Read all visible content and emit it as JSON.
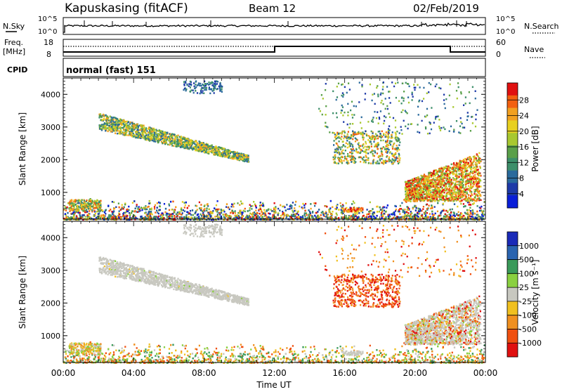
{
  "header": {
    "station": "Kapuskasing (fitACF)",
    "beam": "Beam 12",
    "date": "02/Feb/2019"
  },
  "strips": {
    "nsky_label": "N.Sky",
    "nsky_ticks": [
      "10^5",
      "10^0"
    ],
    "nsearch_label": "N.Search",
    "nsearch_ticks": [
      "10^5",
      "10^0"
    ],
    "freq_label_line1": "Freq.",
    "freq_label_line2": "[MHz]",
    "freq_ticks": [
      "18",
      "8"
    ],
    "nave_label": "Nave",
    "nave_ticks": [
      "60",
      "0"
    ],
    "cpid_label": "CPID",
    "cpid_text": "normal (fast) 151"
  },
  "chart_data": [
    {
      "type": "heatmap",
      "panel": "power",
      "ylabel": "Slant Range [km]",
      "xlabel": "Time UT",
      "x_ticks": [
        "00:00",
        "04:00",
        "08:00",
        "12:00",
        "16:00",
        "20:00",
        "00:00"
      ],
      "x_range_hours": [
        0,
        24
      ],
      "y_ticks": [
        1000,
        2000,
        3000,
        4000
      ],
      "y_range_km": [
        180,
        4500
      ],
      "colorbar_label": "Power [dB]",
      "colorbar_ticks": [
        4,
        8,
        12,
        16,
        20,
        24,
        28
      ],
      "colorscale": [
        "#0a1ed8",
        "#1e3aa8",
        "#2a6a9c",
        "#3d8f6a",
        "#5aa04a",
        "#a8c830",
        "#e8d020",
        "#f2a020",
        "#f26010",
        "#e01010"
      ],
      "regions": [
        {
          "name": "arc-echo",
          "t_start": 2.0,
          "t_end": 10.5,
          "r_start": 3200,
          "r_end": 2000,
          "level": "medium"
        },
        {
          "name": "high-echo",
          "t_start": 6.8,
          "t_end": 9.0,
          "r": 4200,
          "level": "low"
        },
        {
          "name": "near-range",
          "t_start": 0,
          "t_end": 24,
          "r": 300,
          "level": "mixed"
        },
        {
          "name": "evening-echo",
          "t_start": 19.5,
          "t_end": 23.5,
          "r_start": 800,
          "r_end": 2000,
          "level": "high"
        },
        {
          "name": "afternoon-patches",
          "t_start": 15.5,
          "t_end": 19.0,
          "r_start": 2000,
          "r_end": 2800,
          "level": "medium"
        }
      ]
    },
    {
      "type": "heatmap",
      "panel": "velocity",
      "ylabel": "Slant Range [km]",
      "xlabel": "Time UT",
      "x_ticks": [
        "00:00",
        "04:00",
        "08:00",
        "12:00",
        "16:00",
        "20:00",
        "00:00"
      ],
      "x_range_hours": [
        0,
        24
      ],
      "y_ticks": [
        1000,
        2000,
        3000,
        4000
      ],
      "y_range_km": [
        180,
        4500
      ],
      "colorbar_label": "Velocity [m s⁻¹]",
      "colorbar_ticks": [
        1000,
        500,
        100,
        25,
        -25,
        -100,
        -500,
        -1000
      ],
      "colorscale": [
        "#1a2ab8",
        "#2a64b0",
        "#3a9a5a",
        "#8ad040",
        "#c8c8c0",
        "#f0c020",
        "#f09020",
        "#f05010",
        "#e01010"
      ],
      "regions": [
        {
          "name": "arc-echo",
          "t_start": 2.0,
          "t_end": 10.5,
          "r_start": 3200,
          "r_end": 2000,
          "level": "ground"
        },
        {
          "name": "afternoon-patches",
          "t_start": 15.5,
          "t_end": 19.0,
          "r_start": 2000,
          "r_end": 2800,
          "level": "negative"
        },
        {
          "name": "evening-echo",
          "t_start": 19.5,
          "t_end": 23.5,
          "r_start": 800,
          "r_end": 2000,
          "level": "mixed"
        }
      ]
    }
  ],
  "colors": {
    "axis": "#000000",
    "grid_bg": "#ffffff"
  }
}
